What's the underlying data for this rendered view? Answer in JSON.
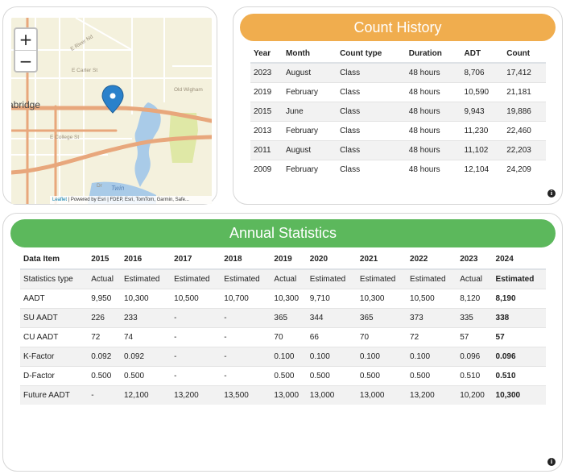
{
  "map": {
    "zoom_in": "+",
    "zoom_out": "−",
    "labels": {
      "river_nd": "E River Nd",
      "carter": "E Carter St",
      "old_wigham": "Old Wigham",
      "bridge": "abridge",
      "college": "E College St",
      "twin": "Twin",
      "dr": "Dr"
    },
    "attribution": {
      "leaflet": "Leaflet",
      "rest": " | Powered by Esri | FDEP, Esri, TomTom, Garmin, Safe..."
    },
    "colors": {
      "land": "#f4f1dd",
      "major_road": "#e8a77c",
      "minor_road": "#ffffff",
      "water": "#a9cbe8",
      "park": "#dfe8a6",
      "marker": "#2a81cb"
    }
  },
  "count_history": {
    "title": "Count History",
    "columns": [
      "Year",
      "Month",
      "Count type",
      "Duration",
      "ADT",
      "Count"
    ],
    "rows": [
      [
        "2023",
        "August",
        "Class",
        "48 hours",
        "8,706",
        "17,412"
      ],
      [
        "2019",
        "February",
        "Class",
        "48 hours",
        "10,590",
        "21,181"
      ],
      [
        "2015",
        "June",
        "Class",
        "48 hours",
        "9,943",
        "19,886"
      ],
      [
        "2013",
        "February",
        "Class",
        "48 hours",
        "11,230",
        "22,460"
      ],
      [
        "2011",
        "August",
        "Class",
        "48 hours",
        "11,102",
        "22,203"
      ],
      [
        "2009",
        "February",
        "Class",
        "48 hours",
        "12,104",
        "24,209"
      ]
    ]
  },
  "annual_statistics": {
    "title": "Annual Statistics",
    "columns": [
      "Data Item",
      "2015",
      "2016",
      "2017",
      "2018",
      "2019",
      "2020",
      "2021",
      "2022",
      "2023",
      "2024"
    ],
    "rows": [
      [
        "Statistics type",
        "Actual",
        "Estimated",
        "Estimated",
        "Estimated",
        "Actual",
        "Estimated",
        "Estimated",
        "Estimated",
        "Actual",
        "Estimated"
      ],
      [
        "AADT",
        "9,950",
        "10,300",
        "10,500",
        "10,700",
        "10,300",
        "9,710",
        "10,300",
        "10,500",
        "8,120",
        "8,190"
      ],
      [
        "SU AADT",
        "226",
        "233",
        "-",
        "-",
        "365",
        "344",
        "365",
        "373",
        "335",
        "338"
      ],
      [
        "CU AADT",
        "72",
        "74",
        "-",
        "-",
        "70",
        "66",
        "70",
        "72",
        "57",
        "57"
      ],
      [
        "K-Factor",
        "0.092",
        "0.092",
        "-",
        "-",
        "0.100",
        "0.100",
        "0.100",
        "0.100",
        "0.096",
        "0.096"
      ],
      [
        "D-Factor",
        "0.500",
        "0.500",
        "-",
        "-",
        "0.500",
        "0.500",
        "0.500",
        "0.500",
        "0.510",
        "0.510"
      ],
      [
        "Future AADT",
        "-",
        "12,100",
        "13,200",
        "13,500",
        "13,000",
        "13,000",
        "13,000",
        "13,200",
        "10,200",
        "10,300"
      ]
    ]
  },
  "info_icon": "i",
  "colors": {
    "count_header": "#f0ad4e",
    "annual_header": "#5cb85c"
  }
}
